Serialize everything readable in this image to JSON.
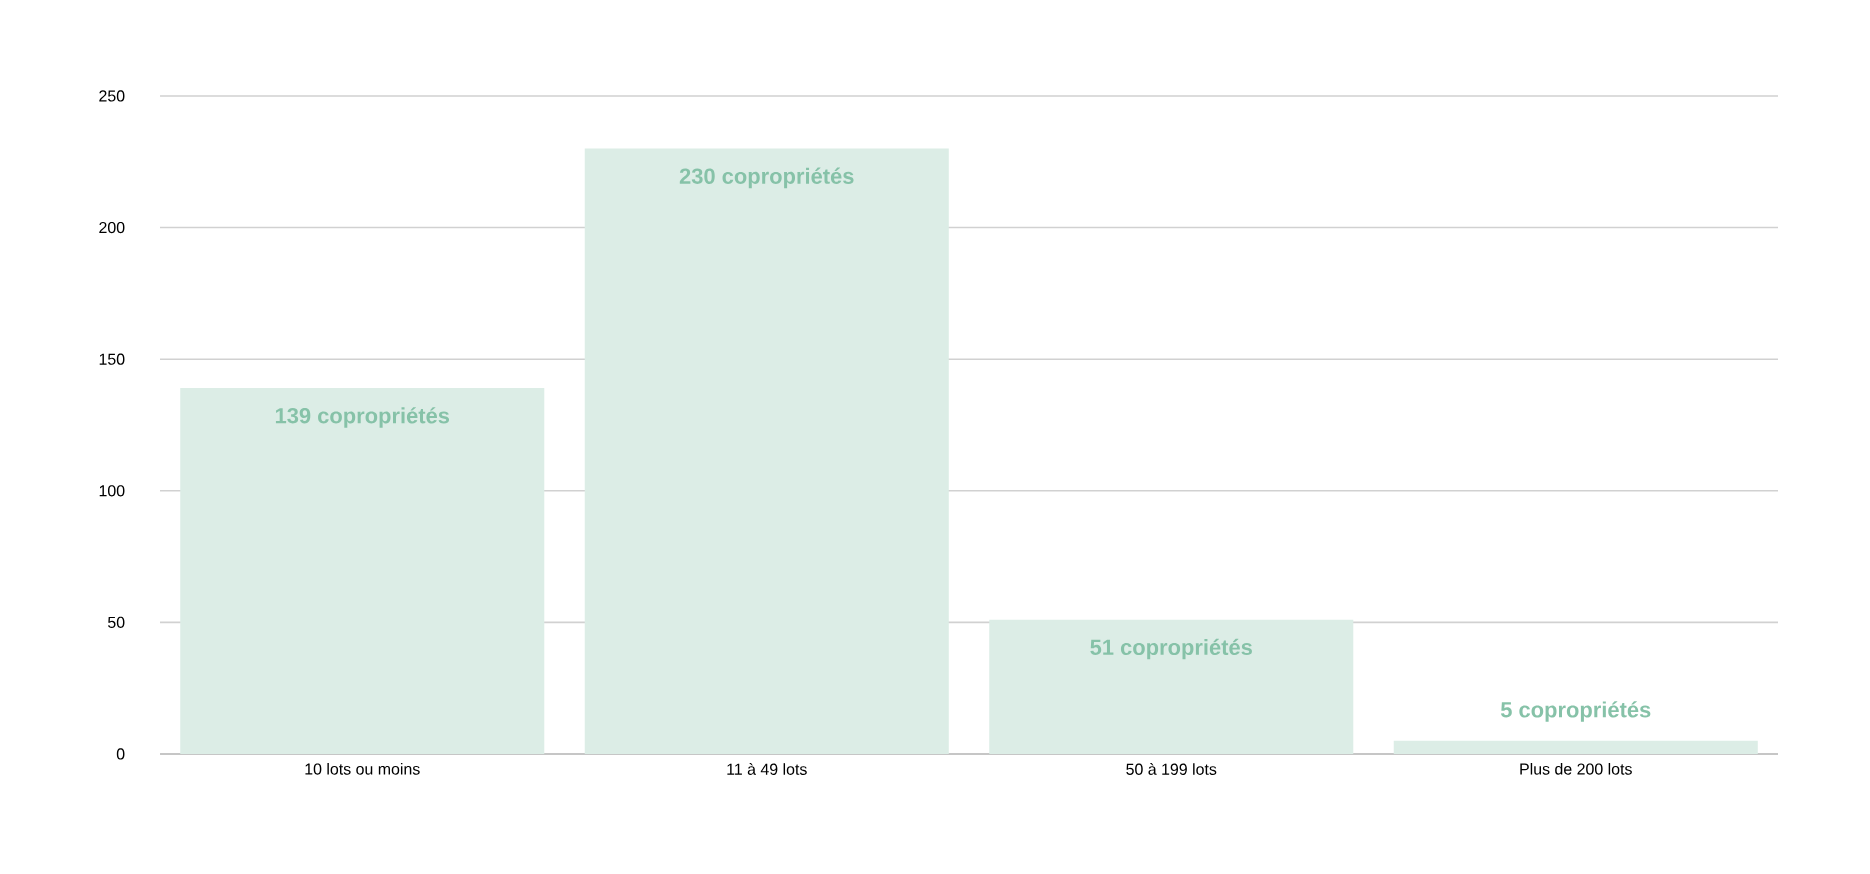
{
  "chart_data": {
    "type": "bar",
    "categories": [
      "10 lots ou moins",
      "11 à 49 lots",
      "50 à 199 lots",
      "Plus de 200 lots"
    ],
    "values": [
      139,
      230,
      51,
      5
    ],
    "value_labels": [
      "139 copropriétés",
      "230  copropriétés",
      "51 copropriétés",
      "5 copropriétés"
    ],
    "color": "#dcede6",
    "ylim": [
      0,
      250
    ],
    "yticks": [
      0,
      50,
      100,
      150,
      200,
      250
    ],
    "grid": "y"
  }
}
